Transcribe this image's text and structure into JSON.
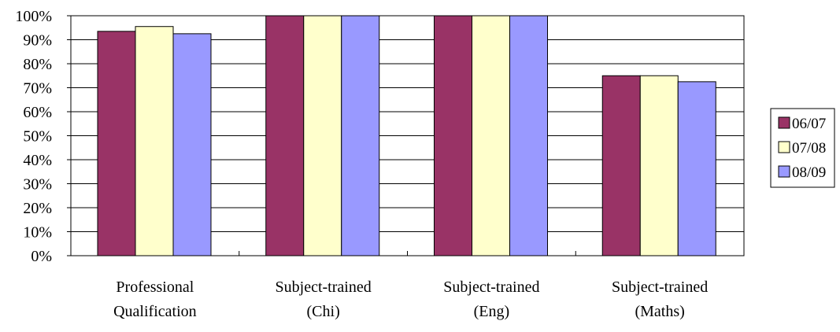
{
  "chart_data": {
    "type": "bar",
    "title": "",
    "xlabel": "",
    "ylabel": "",
    "categories": [
      [
        "Professional",
        "Qualification"
      ],
      [
        "Subject-trained",
        "(Chi)"
      ],
      [
        "Subject-trained",
        "(Eng)"
      ],
      [
        "Subject-trained",
        "(Maths)"
      ]
    ],
    "series": [
      {
        "name": "06/07",
        "color": "#993366",
        "values": [
          93.5,
          100,
          100,
          75
        ]
      },
      {
        "name": "07/08",
        "color": "#ffffcc",
        "values": [
          95.5,
          100,
          100,
          75
        ]
      },
      {
        "name": "08/09",
        "color": "#9999ff",
        "values": [
          92.5,
          100,
          100,
          72.5
        ]
      }
    ],
    "ylim": [
      0,
      100
    ],
    "yticks": [
      "0%",
      "10%",
      "20%",
      "30%",
      "40%",
      "50%",
      "60%",
      "70%",
      "80%",
      "90%",
      "100%"
    ],
    "grid": true,
    "legend_position": "right"
  }
}
